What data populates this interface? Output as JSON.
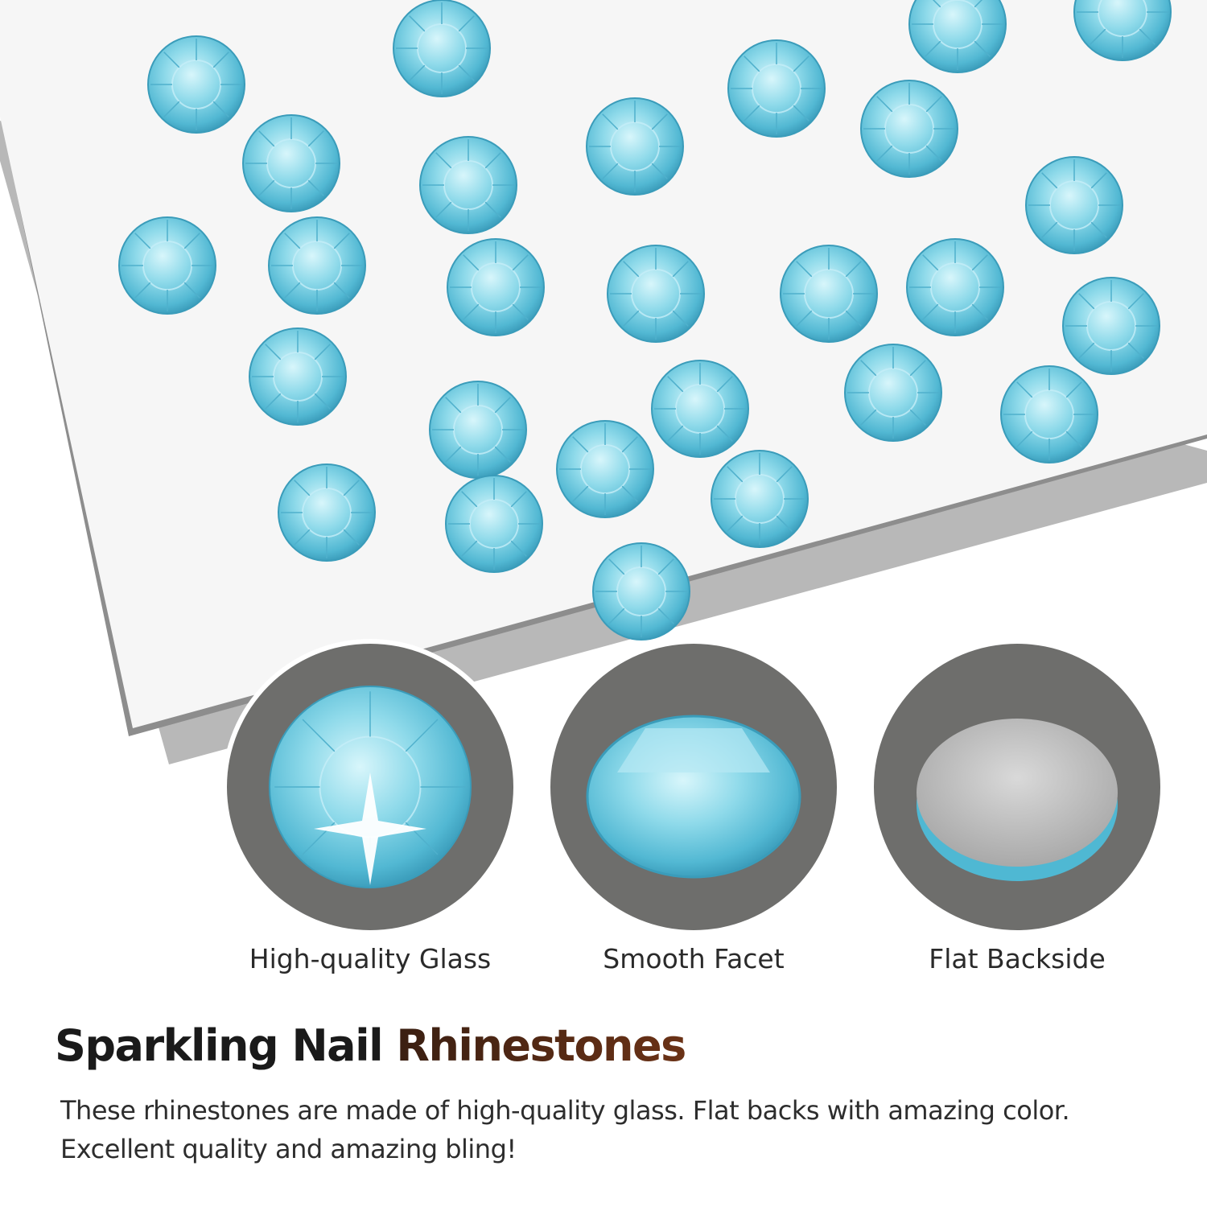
{
  "colors": {
    "gem": "#7fd3e6",
    "gem_dark": "#3fa9c6",
    "circle_bg": "#6e6e6c",
    "accent": "#5c2e16"
  },
  "features": [
    {
      "label": "High-quality Glass",
      "icon": "sparkling-gem-icon"
    },
    {
      "label": "Smooth Facet",
      "icon": "gem-side-icon"
    },
    {
      "label": "Flat Backside",
      "icon": "flat-back-icon"
    }
  ],
  "headline": {
    "part1": "Sparkling Nail ",
    "part2": "Rhinestones"
  },
  "description": "These rhinestones are made of high-quality glass. Flat backs with amazing color. Excellent quality and amazing bling!"
}
